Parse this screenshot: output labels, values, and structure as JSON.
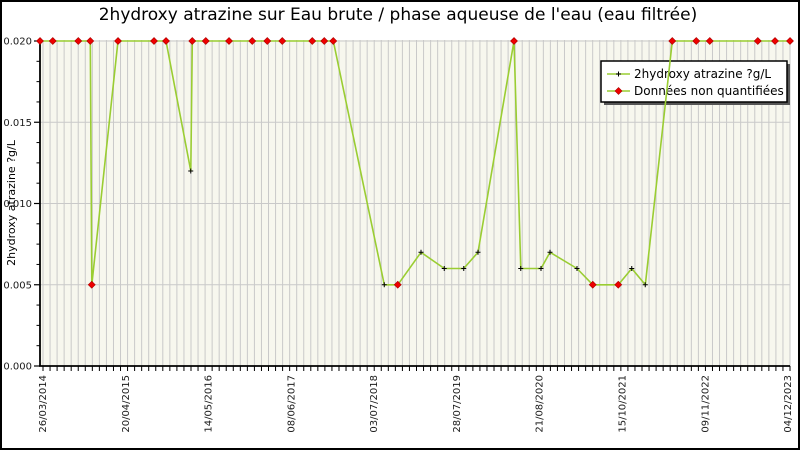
{
  "chart_data": {
    "type": "line",
    "title": "2hydroxy atrazine sur Eau brute / phase aqueuse de l'eau (eau filtrée)",
    "ylabel": "2hydroxy atrazine ?g/L",
    "xlabel": "",
    "ylim": [
      0.0,
      0.02
    ],
    "y_tick_labels": [
      "0.000",
      "0.005",
      "0.010",
      "0.015",
      "0.020"
    ],
    "y_tick_values": [
      0.0,
      0.005,
      0.01,
      0.015,
      0.02
    ],
    "y_minor_step": 0.00125,
    "x_tick_labels": [
      "26/03/2014",
      "20/04/2015",
      "14/05/2016",
      "08/06/2017",
      "03/07/2018",
      "28/07/2019",
      "21/08/2020",
      "15/10/2021",
      "09/11/2022",
      "04/12/2023"
    ],
    "grid": "fine vertical minor gridlines + horizontal major gridlines",
    "legend": {
      "position": "upper right",
      "entries": [
        {
          "label": "2hydroxy atrazine ?g/L",
          "marker": "plus",
          "marker_color": "#000000"
        },
        {
          "label": "Données non quantifiées",
          "marker": "diamond",
          "marker_color": "#ee0000"
        }
      ]
    },
    "colors": {
      "line": "#9acd32",
      "plot_bg": "#f7f7ee",
      "grid": "#c9c9c9",
      "axis": "#000000",
      "tick_text": "#1a1a1a",
      "quantified_marker": "#000000",
      "non_quantified_marker": "#ee0000",
      "non_quantified_marker_edge": "#aa0000",
      "legend_shadow": "#555555"
    },
    "points": [
      {
        "x": 0.0,
        "v": 0.02,
        "q": false
      },
      {
        "x": 0.017,
        "v": 0.02,
        "q": false
      },
      {
        "x": 0.051,
        "v": 0.02,
        "q": false
      },
      {
        "x": 0.067,
        "v": 0.02,
        "q": false
      },
      {
        "x": 0.069,
        "v": 0.005,
        "q": false
      },
      {
        "x": 0.104,
        "v": 0.02,
        "q": false
      },
      {
        "x": 0.152,
        "v": 0.02,
        "q": false
      },
      {
        "x": 0.168,
        "v": 0.02,
        "q": false
      },
      {
        "x": 0.201,
        "v": 0.012,
        "q": true
      },
      {
        "x": 0.203,
        "v": 0.02,
        "q": false
      },
      {
        "x": 0.221,
        "v": 0.02,
        "q": false
      },
      {
        "x": 0.252,
        "v": 0.02,
        "q": false
      },
      {
        "x": 0.283,
        "v": 0.02,
        "q": false
      },
      {
        "x": 0.303,
        "v": 0.02,
        "q": false
      },
      {
        "x": 0.323,
        "v": 0.02,
        "q": false
      },
      {
        "x": 0.363,
        "v": 0.02,
        "q": false
      },
      {
        "x": 0.379,
        "v": 0.02,
        "q": false
      },
      {
        "x": 0.391,
        "v": 0.02,
        "q": false
      },
      {
        "x": 0.459,
        "v": 0.005,
        "q": true
      },
      {
        "x": 0.477,
        "v": 0.005,
        "q": false
      },
      {
        "x": 0.508,
        "v": 0.007,
        "q": true
      },
      {
        "x": 0.539,
        "v": 0.006,
        "q": true
      },
      {
        "x": 0.565,
        "v": 0.006,
        "q": true
      },
      {
        "x": 0.584,
        "v": 0.007,
        "q": true
      },
      {
        "x": 0.632,
        "v": 0.02,
        "q": false
      },
      {
        "x": 0.641,
        "v": 0.006,
        "q": true
      },
      {
        "x": 0.668,
        "v": 0.006,
        "q": true
      },
      {
        "x": 0.68,
        "v": 0.007,
        "q": true
      },
      {
        "x": 0.716,
        "v": 0.006,
        "q": true
      },
      {
        "x": 0.737,
        "v": 0.005,
        "q": false
      },
      {
        "x": 0.771,
        "v": 0.005,
        "q": false
      },
      {
        "x": 0.789,
        "v": 0.006,
        "q": true
      },
      {
        "x": 0.807,
        "v": 0.005,
        "q": true
      },
      {
        "x": 0.843,
        "v": 0.02,
        "q": false
      },
      {
        "x": 0.875,
        "v": 0.02,
        "q": false
      },
      {
        "x": 0.893,
        "v": 0.02,
        "q": false
      },
      {
        "x": 0.957,
        "v": 0.02,
        "q": false
      },
      {
        "x": 0.98,
        "v": 0.02,
        "q": false
      },
      {
        "x": 1.0,
        "v": 0.02,
        "q": false
      }
    ]
  }
}
